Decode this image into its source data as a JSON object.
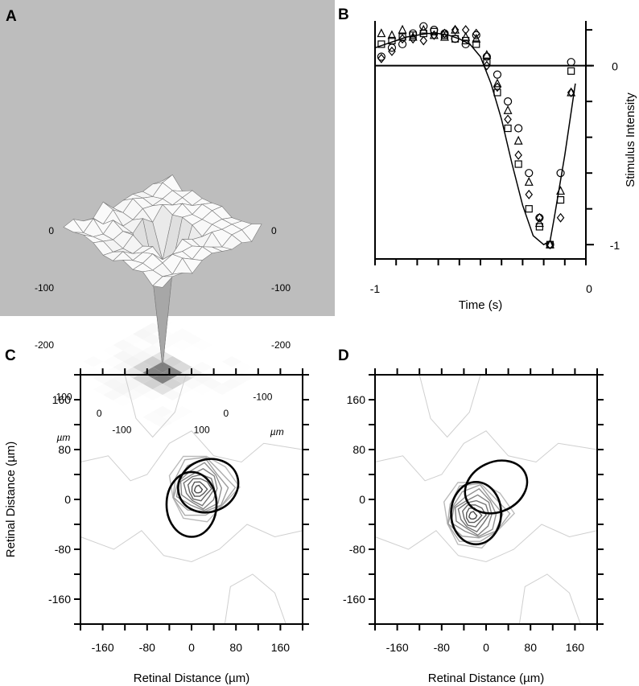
{
  "panels": {
    "A": {
      "label": "A"
    },
    "B": {
      "label": "B"
    },
    "C": {
      "label": "C"
    },
    "D": {
      "label": "D"
    }
  },
  "chart_data": [
    {
      "panel": "A",
      "type": "surface3d",
      "z_ticks": [
        "0",
        "-100",
        "-200"
      ],
      "xy_ticks_left": [
        "100",
        "0",
        "-100"
      ],
      "xy_ticks_right": [
        "100",
        "0",
        "-100"
      ],
      "unit_label": "µm",
      "zlim": [
        -250,
        20
      ],
      "grid_size": 11,
      "peak": {
        "x_um": 0,
        "y_um": 0,
        "z": -240
      },
      "surround_level": 0
    },
    {
      "panel": "B",
      "type": "scatter",
      "xlabel": "Time (s)",
      "ylabel": "Stimulus Intensity",
      "xlim": [
        -1,
        0
      ],
      "ylim": [
        -1.08,
        0.25
      ],
      "x_ticks": [
        "-1",
        "0"
      ],
      "y_ticks": [
        "0",
        "-1"
      ],
      "fit_curve": {
        "x": [
          -1.0,
          -0.95,
          -0.9,
          -0.85,
          -0.8,
          -0.75,
          -0.7,
          -0.65,
          -0.6,
          -0.55,
          -0.5,
          -0.45,
          -0.4,
          -0.35,
          -0.3,
          -0.25,
          -0.2,
          -0.17,
          -0.15,
          -0.1,
          -0.05
        ],
        "y": [
          0.1,
          0.12,
          0.14,
          0.16,
          0.17,
          0.18,
          0.18,
          0.17,
          0.15,
          0.12,
          0.05,
          -0.1,
          -0.3,
          -0.55,
          -0.78,
          -0.95,
          -1.0,
          -0.98,
          -0.85,
          -0.5,
          -0.1
        ]
      },
      "series": [
        {
          "marker": "circle",
          "x": [
            -0.97,
            -0.92,
            -0.87,
            -0.82,
            -0.77,
            -0.72,
            -0.67,
            -0.62,
            -0.57,
            -0.52,
            -0.47,
            -0.42,
            -0.37,
            -0.32,
            -0.27,
            -0.22,
            -0.17,
            -0.12,
            -0.07
          ],
          "y": [
            0.05,
            0.1,
            0.12,
            0.18,
            0.22,
            0.2,
            0.18,
            0.15,
            0.12,
            0.17,
            0.05,
            -0.05,
            -0.2,
            -0.35,
            -0.6,
            -0.85,
            -1.0,
            -0.6,
            0.02
          ]
        },
        {
          "marker": "square",
          "x": [
            -0.97,
            -0.92,
            -0.87,
            -0.82,
            -0.77,
            -0.72,
            -0.67,
            -0.62,
            -0.57,
            -0.52,
            -0.47,
            -0.42,
            -0.37,
            -0.32,
            -0.27,
            -0.22,
            -0.17,
            -0.12,
            -0.07
          ],
          "y": [
            0.12,
            0.14,
            0.16,
            0.17,
            0.18,
            0.19,
            0.17,
            0.15,
            0.14,
            0.12,
            0.02,
            -0.15,
            -0.35,
            -0.55,
            -0.8,
            -0.9,
            -1.0,
            -0.75,
            -0.03
          ]
        },
        {
          "marker": "triangle",
          "x": [
            -0.97,
            -0.92,
            -0.87,
            -0.82,
            -0.77,
            -0.72,
            -0.67,
            -0.62,
            -0.57,
            -0.52,
            -0.47,
            -0.42,
            -0.37,
            -0.32,
            -0.27,
            -0.22,
            -0.17,
            -0.12,
            -0.07
          ],
          "y": [
            0.18,
            0.17,
            0.2,
            0.16,
            0.2,
            0.17,
            0.16,
            0.2,
            0.16,
            0.15,
            0.06,
            -0.1,
            -0.25,
            -0.42,
            -0.65,
            -0.88,
            -1.0,
            -0.7,
            -0.15
          ]
        },
        {
          "marker": "diamond",
          "x": [
            -0.97,
            -0.92,
            -0.87,
            -0.82,
            -0.77,
            -0.72,
            -0.67,
            -0.62,
            -0.57,
            -0.52,
            -0.47,
            -0.42,
            -0.37,
            -0.32,
            -0.27,
            -0.22,
            -0.17,
            -0.12,
            -0.07
          ],
          "y": [
            0.04,
            0.08,
            0.15,
            0.15,
            0.14,
            0.17,
            0.18,
            0.2,
            0.2,
            0.18,
            0.0,
            -0.12,
            -0.3,
            -0.5,
            -0.72,
            -0.85,
            -1.0,
            -0.85,
            -0.15
          ]
        }
      ]
    },
    {
      "panel": "C",
      "type": "contour",
      "xlabel": "Retinal Distance (µm)",
      "ylabel": "Retinal Distance (µm)",
      "xlim": [
        -200,
        200
      ],
      "ylim": [
        -200,
        200
      ],
      "ticks": [
        "-160",
        "-80",
        "0",
        "80",
        "160"
      ],
      "contour_center": [
        18,
        20
      ],
      "ellipses": [
        {
          "cx": 30,
          "cy": 22,
          "rx": 55,
          "ry": 42,
          "angle": 20
        },
        {
          "cx": 0,
          "cy": -8,
          "rx": 45,
          "ry": 52,
          "angle": 0
        }
      ]
    },
    {
      "panel": "D",
      "type": "contour",
      "xlabel": "Retinal Distance (µm)",
      "ylabel": "",
      "xlim": [
        -200,
        200
      ],
      "ylim": [
        -200,
        200
      ],
      "ticks": [
        "-160",
        "-80",
        "0",
        "80",
        "160"
      ],
      "contour_center": [
        -18,
        -22
      ],
      "ellipses": [
        {
          "cx": 18,
          "cy": 20,
          "rx": 58,
          "ry": 40,
          "angle": 25
        },
        {
          "cx": -18,
          "cy": -22,
          "rx": 45,
          "ry": 50,
          "angle": 0
        }
      ]
    }
  ]
}
